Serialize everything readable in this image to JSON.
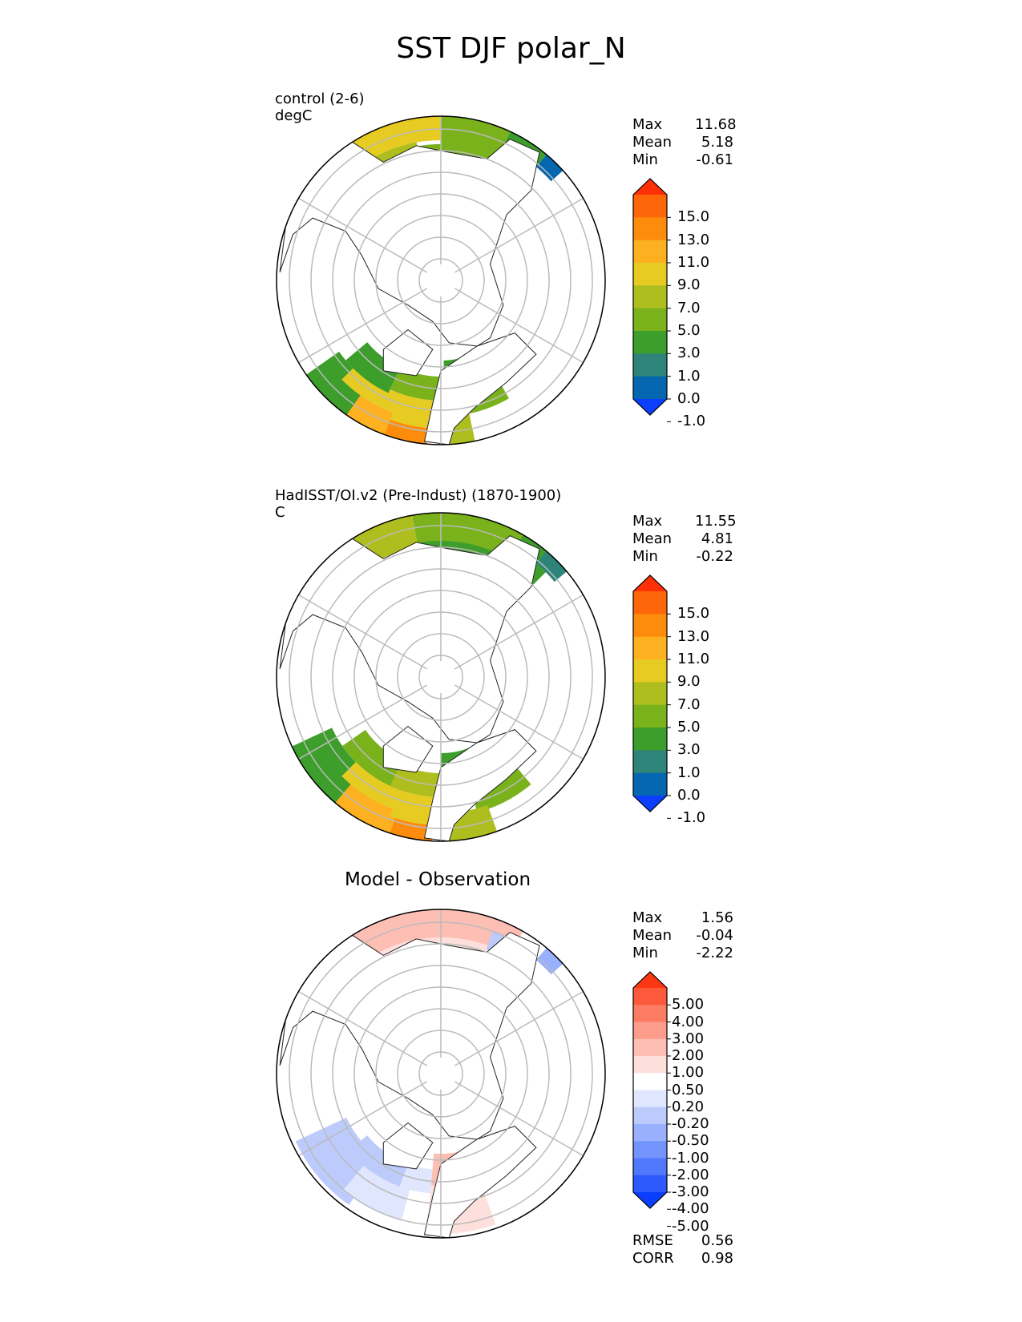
{
  "figure_title": "SST DJF polar_N",
  "colors": {
    "abs_levels": [
      "#0c3efe",
      "#0567af",
      "#2f847a",
      "#3d9e2b",
      "#79b21b",
      "#aebe1e",
      "#e6cc22",
      "#fdb020",
      "#fe8c0c",
      "#fe660a",
      "#ff2f06"
    ],
    "diff_levels": [
      "#0b3efc",
      "#2c5afd",
      "#5078fd",
      "#7393fd",
      "#98b0fd",
      "#bccbfc",
      "#dfe6fd",
      "#ffffff",
      "#fde0dc",
      "#fdbfb4",
      "#fc9d8c",
      "#fc7c63",
      "#fc5a3b",
      "#fc3714"
    ],
    "land": "#ffffff",
    "grid": "#bbbbbb"
  },
  "panels": [
    {
      "label_lines": [
        "control (2-6)",
        "degC"
      ],
      "title": "",
      "stats": [
        {
          "name": "Max",
          "value": "11.68"
        },
        {
          "name": "Mean",
          "value": "5.18"
        },
        {
          "name": "Min",
          "value": "-0.61"
        }
      ],
      "colorbar": {
        "scheme": "abs",
        "ticks": [
          "15.0",
          "13.0",
          "11.0",
          "9.0",
          "7.0",
          "5.0",
          "3.0",
          "1.0",
          "0.0",
          "-1.0"
        ]
      },
      "extra_stats": []
    },
    {
      "label_lines": [
        "HadISST/OI.v2 (Pre-Indust) (1870-1900)",
        "C"
      ],
      "title": "",
      "stats": [
        {
          "name": "Max",
          "value": "11.55"
        },
        {
          "name": "Mean",
          "value": "4.81"
        },
        {
          "name": "Min",
          "value": "-0.22"
        }
      ],
      "colorbar": {
        "scheme": "abs",
        "ticks": [
          "15.0",
          "13.0",
          "11.0",
          "9.0",
          "7.0",
          "5.0",
          "3.0",
          "1.0",
          "0.0",
          "-1.0"
        ]
      },
      "extra_stats": []
    },
    {
      "label_lines": [],
      "title": "Model - Observation",
      "stats": [
        {
          "name": "Max",
          "value": "1.56"
        },
        {
          "name": "Mean",
          "value": "-0.04"
        },
        {
          "name": "Min",
          "value": "-2.22"
        }
      ],
      "colorbar": {
        "scheme": "diff",
        "ticks": [
          "5.00",
          "4.00",
          "3.00",
          "2.00",
          "1.00",
          "0.50",
          "0.20",
          "-0.20",
          "-0.50",
          "-1.00",
          "-2.00",
          "-3.00",
          "-4.00",
          "-5.00"
        ]
      },
      "extra_stats": [
        {
          "name": "RMSE",
          "value": "0.56"
        },
        {
          "name": "CORR",
          "value": "0.98"
        }
      ]
    }
  ],
  "chart_data": {
    "type": "heatmap",
    "title": "SST DJF polar_N",
    "projection": "north polar stereographic",
    "variable": "SST",
    "season": "DJF",
    "maps": [
      {
        "name": "control (2-6)",
        "units": "degC",
        "max": 11.68,
        "mean": 5.18,
        "min": -0.61,
        "levels": [
          -1.0,
          0.0,
          1.0,
          3.0,
          5.0,
          7.0,
          9.0,
          11.0,
          13.0,
          15.0
        ]
      },
      {
        "name": "HadISST/OI.v2 (Pre-Indust) (1870-1900)",
        "units": "C",
        "max": 11.55,
        "mean": 4.81,
        "min": -0.22,
        "levels": [
          -1.0,
          0.0,
          1.0,
          3.0,
          5.0,
          7.0,
          9.0,
          11.0,
          13.0,
          15.0
        ]
      },
      {
        "name": "Model - Observation",
        "max": 1.56,
        "mean": -0.04,
        "min": -2.22,
        "rmse": 0.56,
        "corr": 0.98,
        "levels": [
          -5.0,
          -4.0,
          -3.0,
          -2.0,
          -1.0,
          -0.5,
          -0.2,
          0.2,
          0.5,
          1.0,
          2.0,
          3.0,
          4.0,
          5.0
        ]
      }
    ]
  }
}
